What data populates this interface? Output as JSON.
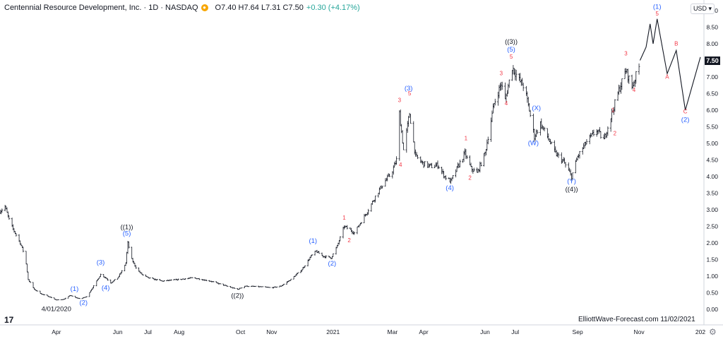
{
  "header": {
    "title": "Centennial Resource Development, Inc. · 1D · NASDAQ",
    "ohlc": "O7.40 H7.64 L7.31 C7.50",
    "change": "+0.30 (+4.17%)"
  },
  "currency": "USD",
  "price_tag": "7.50",
  "watermark": "ElliottWave-Forecast.com  11/02/2021",
  "colors": {
    "label_blue": "#2962ff",
    "label_red": "#f23645",
    "bar": "#131722",
    "last_price": "#131722"
  },
  "chart_data": {
    "type": "ohlc",
    "x_range": [
      "2020-02-05",
      "2022-01-01"
    ],
    "ylim": [
      -0.15,
      9.2
    ],
    "grid": false,
    "y_ticks": [
      "0.00",
      "0.50",
      "1.00",
      "1.50",
      "2.00",
      "2.50",
      "3.00",
      "3.50",
      "4.00",
      "4.50",
      "5.00",
      "5.50",
      "6.00",
      "6.50",
      "7.00",
      "7.50",
      "8.00",
      "8.50",
      "9.00"
    ],
    "x_ticks": [
      {
        "label": "Apr",
        "date": "2020-04-01"
      },
      {
        "label": "Jun",
        "date": "2020-06-01"
      },
      {
        "label": "Jul",
        "date": "2020-07-01"
      },
      {
        "label": "Aug",
        "date": "2020-08-01"
      },
      {
        "label": "Oct",
        "date": "2020-10-01"
      },
      {
        "label": "Nov",
        "date": "2020-11-01"
      },
      {
        "label": "2021",
        "date": "2021-01-01"
      },
      {
        "label": "Mar",
        "date": "2021-03-01"
      },
      {
        "label": "Apr",
        "date": "2021-04-01"
      },
      {
        "label": "Jun",
        "date": "2021-06-01"
      },
      {
        "label": "Jul",
        "date": "2021-07-01"
      },
      {
        "label": "Sep",
        "date": "2021-09-01"
      },
      {
        "label": "Nov",
        "date": "2021-11-01"
      },
      {
        "label": "202",
        "date": "2022-01-01"
      }
    ],
    "price_path": [
      [
        "2020-02-05",
        2.95
      ],
      [
        "2020-02-10",
        3.1
      ],
      [
        "2020-02-15",
        2.6
      ],
      [
        "2020-02-20",
        2.3
      ],
      [
        "2020-02-25",
        2.0
      ],
      [
        "2020-03-01",
        1.6
      ],
      [
        "2020-03-04",
        0.9
      ],
      [
        "2020-03-10",
        0.6
      ],
      [
        "2020-03-18",
        0.45
      ],
      [
        "2020-03-25",
        0.38
      ],
      [
        "2020-04-01",
        0.28
      ],
      [
        "2020-04-08",
        0.3
      ],
      [
        "2020-04-15",
        0.42
      ],
      [
        "2020-04-20",
        0.35
      ],
      [
        "2020-04-25",
        0.32
      ],
      [
        "2020-05-01",
        0.38
      ],
      [
        "2020-05-08",
        0.7
      ],
      [
        "2020-05-15",
        1.05
      ],
      [
        "2020-05-20",
        0.95
      ],
      [
        "2020-05-25",
        0.8
      ],
      [
        "2020-06-01",
        0.95
      ],
      [
        "2020-06-05",
        1.15
      ],
      [
        "2020-06-09",
        1.4
      ],
      [
        "2020-06-11",
        2.0
      ],
      [
        "2020-06-15",
        1.5
      ],
      [
        "2020-06-20",
        1.2
      ],
      [
        "2020-06-25",
        1.05
      ],
      [
        "2020-07-01",
        0.95
      ],
      [
        "2020-07-15",
        0.85
      ],
      [
        "2020-08-01",
        0.9
      ],
      [
        "2020-08-15",
        0.95
      ],
      [
        "2020-09-01",
        0.85
      ],
      [
        "2020-09-15",
        0.72
      ],
      [
        "2020-09-28",
        0.6
      ],
      [
        "2020-10-05",
        0.7
      ],
      [
        "2020-10-20",
        0.68
      ],
      [
        "2020-11-01",
        0.65
      ],
      [
        "2020-11-10",
        0.7
      ],
      [
        "2020-11-20",
        0.9
      ],
      [
        "2020-12-01",
        1.2
      ],
      [
        "2020-12-10",
        1.6
      ],
      [
        "2020-12-15",
        1.75
      ],
      [
        "2020-12-22",
        1.6
      ],
      [
        "2020-12-30",
        1.55
      ],
      [
        "2021-01-05",
        1.9
      ],
      [
        "2021-01-12",
        2.5
      ],
      [
        "2021-01-18",
        2.4
      ],
      [
        "2021-01-22",
        2.3
      ],
      [
        "2021-01-28",
        2.6
      ],
      [
        "2021-02-05",
        3.0
      ],
      [
        "2021-02-12",
        3.4
      ],
      [
        "2021-02-20",
        3.8
      ],
      [
        "2021-02-28",
        4.1
      ],
      [
        "2021-03-05",
        4.5
      ],
      [
        "2021-03-08",
        5.9
      ],
      [
        "2021-03-12",
        4.8
      ],
      [
        "2021-03-18",
        5.9
      ],
      [
        "2021-03-24",
        4.6
      ],
      [
        "2021-03-31",
        4.4
      ],
      [
        "2021-04-08",
        4.3
      ],
      [
        "2021-04-15",
        4.35
      ],
      [
        "2021-04-22",
        4.0
      ],
      [
        "2021-04-28",
        3.85
      ],
      [
        "2021-05-05",
        4.3
      ],
      [
        "2021-05-12",
        4.7
      ],
      [
        "2021-05-18",
        4.25
      ],
      [
        "2021-05-24",
        4.1
      ],
      [
        "2021-06-01",
        4.7
      ],
      [
        "2021-06-10",
        6.2
      ],
      [
        "2021-06-17",
        6.8
      ],
      [
        "2021-06-21",
        6.3
      ],
      [
        "2021-06-28",
        7.3
      ],
      [
        "2021-07-05",
        6.9
      ],
      [
        "2021-07-10",
        6.7
      ],
      [
        "2021-07-15",
        6.0
      ],
      [
        "2021-07-20",
        5.2
      ],
      [
        "2021-07-26",
        5.6
      ],
      [
        "2021-08-02",
        5.2
      ],
      [
        "2021-08-10",
        4.7
      ],
      [
        "2021-08-18",
        4.45
      ],
      [
        "2021-08-26",
        4.0
      ],
      [
        "2021-09-01",
        4.6
      ],
      [
        "2021-09-10",
        5.05
      ],
      [
        "2021-09-20",
        5.4
      ],
      [
        "2021-09-27",
        5.1
      ],
      [
        "2021-10-05",
        5.9
      ],
      [
        "2021-10-12",
        6.6
      ],
      [
        "2021-10-19",
        7.2
      ],
      [
        "2021-10-25",
        6.7
      ],
      [
        "2021-11-01",
        7.3
      ],
      [
        "2021-11-02",
        7.5
      ]
    ],
    "projection": [
      [
        "2021-11-02",
        7.5
      ],
      [
        "2021-11-08",
        7.9
      ],
      [
        "2021-11-12",
        8.6
      ],
      [
        "2021-11-15",
        8.0
      ],
      [
        "2021-11-19",
        8.75
      ],
      [
        "2021-11-29",
        7.1
      ],
      [
        "2021-12-08",
        7.8
      ],
      [
        "2021-12-17",
        6.0
      ],
      [
        "2022-01-01",
        7.6
      ]
    ],
    "labels": [
      {
        "text": "((1))",
        "date": "2020-06-10",
        "y": 2.42,
        "color": "black"
      },
      {
        "text": "(5)",
        "date": "2020-06-10",
        "y": 2.22,
        "color": "blue"
      },
      {
        "text": "(1)",
        "date": "2020-04-19",
        "y": 0.55,
        "color": "blue"
      },
      {
        "text": "(2)",
        "date": "2020-04-28",
        "y": 0.14,
        "color": "blue"
      },
      {
        "text": "(3)",
        "date": "2020-05-15",
        "y": 1.35,
        "color": "blue"
      },
      {
        "text": "(4)",
        "date": "2020-05-20",
        "y": 0.58,
        "color": "blue"
      },
      {
        "text": "4/01/2020",
        "date": "2020-04-01",
        "y": -0.05,
        "color": "black"
      },
      {
        "text": "((2))",
        "date": "2020-09-28",
        "y": 0.35,
        "color": "black"
      },
      {
        "text": "(1)",
        "date": "2020-12-12",
        "y": 2.0,
        "color": "blue"
      },
      {
        "text": "(2)",
        "date": "2020-12-31",
        "y": 1.32,
        "color": "blue"
      },
      {
        "text": "1",
        "date": "2021-01-12",
        "y": 2.7,
        "color": "red"
      },
      {
        "text": "2",
        "date": "2021-01-17",
        "y": 2.02,
        "color": "red"
      },
      {
        "text": "(3)",
        "date": "2021-03-17",
        "y": 6.6,
        "color": "blue"
      },
      {
        "text": "3",
        "date": "2021-03-08",
        "y": 6.25,
        "color": "red"
      },
      {
        "text": "5",
        "date": "2021-03-18",
        "y": 6.45,
        "color": "red"
      },
      {
        "text": "4",
        "date": "2021-03-09",
        "y": 4.3,
        "color": "red"
      },
      {
        "text": "(4)",
        "date": "2021-04-27",
        "y": 3.6,
        "color": "blue"
      },
      {
        "text": "1",
        "date": "2021-05-13",
        "y": 5.1,
        "color": "red"
      },
      {
        "text": "2",
        "date": "2021-05-17",
        "y": 3.9,
        "color": "red"
      },
      {
        "text": "((3))",
        "date": "2021-06-27",
        "y": 8.0,
        "color": "black"
      },
      {
        "text": "(5)",
        "date": "2021-06-27",
        "y": 7.77,
        "color": "blue"
      },
      {
        "text": "5",
        "date": "2021-06-27",
        "y": 7.55,
        "color": "red"
      },
      {
        "text": "3",
        "date": "2021-06-17",
        "y": 7.05,
        "color": "red"
      },
      {
        "text": "4",
        "date": "2021-06-22",
        "y": 6.15,
        "color": "red"
      },
      {
        "text": "(X)",
        "date": "2021-07-22",
        "y": 6.0,
        "color": "blue"
      },
      {
        "text": "(W)",
        "date": "2021-07-19",
        "y": 4.95,
        "color": "blue"
      },
      {
        "text": "(Y)",
        "date": "2021-08-26",
        "y": 3.8,
        "color": "blue"
      },
      {
        "text": "((4))",
        "date": "2021-08-26",
        "y": 3.55,
        "color": "black"
      },
      {
        "text": "1",
        "date": "2021-10-06",
        "y": 5.95,
        "color": "red"
      },
      {
        "text": "2",
        "date": "2021-10-08",
        "y": 5.25,
        "color": "red"
      },
      {
        "text": "3",
        "date": "2021-10-19",
        "y": 7.65,
        "color": "red"
      },
      {
        "text": "4",
        "date": "2021-10-27",
        "y": 6.55,
        "color": "red"
      },
      {
        "text": "(1)",
        "date": "2021-11-19",
        "y": 9.05,
        "color": "blue"
      },
      {
        "text": "5",
        "date": "2021-11-19",
        "y": 8.85,
        "color": "red"
      },
      {
        "text": "A",
        "date": "2021-11-29",
        "y": 6.95,
        "color": "red"
      },
      {
        "text": "B",
        "date": "2021-12-08",
        "y": 7.95,
        "color": "red"
      },
      {
        "text": "C",
        "date": "2021-12-17",
        "y": 5.9,
        "color": "red"
      },
      {
        "text": "(2)",
        "date": "2021-12-17",
        "y": 5.65,
        "color": "blue"
      }
    ]
  }
}
